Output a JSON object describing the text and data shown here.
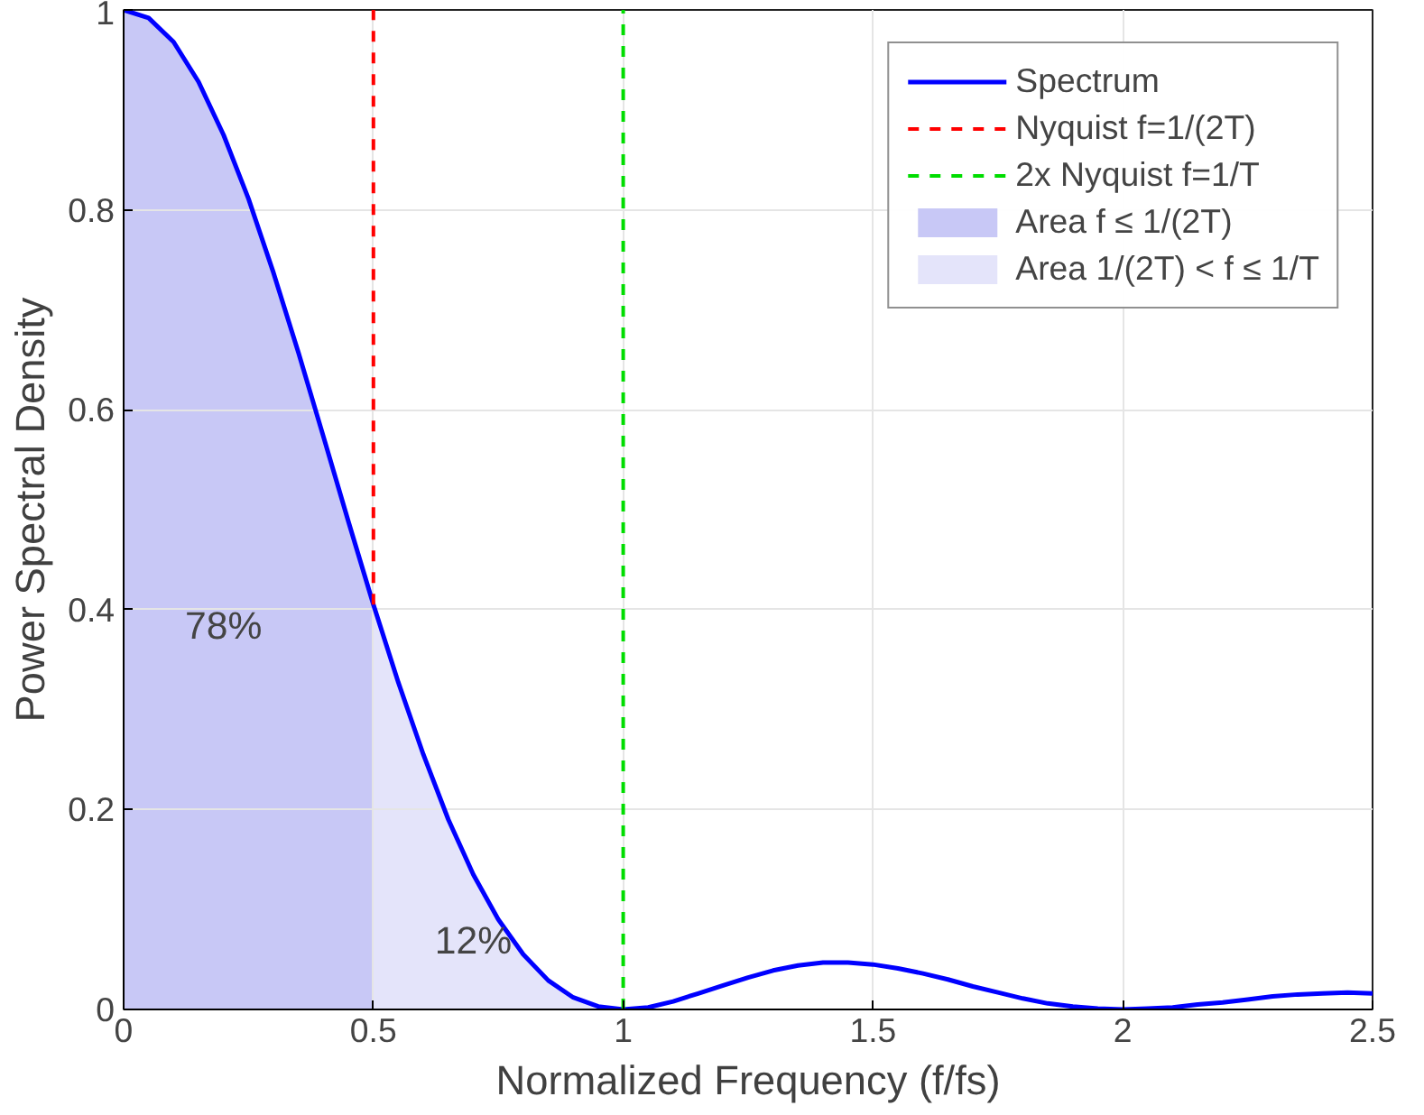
{
  "chart_data": {
    "type": "line",
    "xlabel": "Normalized Frequency (f/fs)",
    "ylabel": "Power Spectral Density",
    "xlim": [
      0,
      2.5
    ],
    "ylim": [
      0,
      1
    ],
    "xticks": [
      0,
      0.5,
      1,
      1.5,
      2,
      2.5
    ],
    "yticks": [
      0,
      0.2,
      0.4,
      0.6,
      0.8,
      1
    ],
    "grid": true,
    "legend": "top right",
    "series": [
      {
        "name": "Spectrum",
        "color": "#0000ff",
        "line_style": "solid",
        "x": [
          0,
          0.05,
          0.1,
          0.15,
          0.2,
          0.25,
          0.3,
          0.35,
          0.4,
          0.45,
          0.5,
          0.55,
          0.6,
          0.65,
          0.7,
          0.75,
          0.8,
          0.85,
          0.9,
          0.95,
          1,
          1.05,
          1.1,
          1.15,
          1.2,
          1.25,
          1.3,
          1.35,
          1.4,
          1.45,
          1.5,
          1.55,
          1.6,
          1.65,
          1.7,
          1.75,
          1.8,
          1.85,
          1.9,
          1.95,
          2,
          2.05,
          2.1,
          2.15,
          2.2,
          2.25,
          2.3,
          2.35,
          2.4,
          2.45,
          2.5
        ],
        "values": [
          1,
          0.992,
          0.968,
          0.928,
          0.875,
          0.811,
          0.737,
          0.657,
          0.573,
          0.488,
          0.405,
          0.327,
          0.255,
          0.19,
          0.135,
          0.09,
          0.055,
          0.029,
          0.012,
          0.003,
          0,
          0.002,
          0.008,
          0.016,
          0.024,
          0.032,
          0.039,
          0.044,
          0.047,
          0.047,
          0.045,
          0.041,
          0.036,
          0.03,
          0.023,
          0.017,
          0.011,
          0.006,
          0.003,
          0.001,
          0,
          0.001,
          0.002,
          0.005,
          0.007,
          0.01,
          0.013,
          0.015,
          0.016,
          0.017,
          0.016
        ]
      },
      {
        "name": "Nyquist f=1/(2T)",
        "color": "#ff0000",
        "line_style": "dashed",
        "x": [
          0.5,
          0.5
        ],
        "values": [
          0.405,
          1
        ]
      },
      {
        "name": "2x Nyquist f=1/T",
        "color": "#00dd00",
        "line_style": "dashed",
        "x": [
          1,
          1
        ],
        "values": [
          0,
          1
        ]
      },
      {
        "name": "Area f ≤ 1/(2T)",
        "color": "#c8c8f6",
        "type": "area",
        "x": [
          0,
          0.05,
          0.1,
          0.15,
          0.2,
          0.25,
          0.3,
          0.35,
          0.4,
          0.45,
          0.5
        ],
        "values": [
          1,
          0.992,
          0.968,
          0.928,
          0.875,
          0.811,
          0.737,
          0.657,
          0.573,
          0.488,
          0.405
        ]
      },
      {
        "name": "Area 1/(2T) < f ≤ 1/T",
        "color": "#e4e4fa",
        "type": "area",
        "x": [
          0.5,
          0.55,
          0.6,
          0.65,
          0.7,
          0.75,
          0.8,
          0.85,
          0.9,
          0.95,
          1
        ],
        "values": [
          0.405,
          0.327,
          0.255,
          0.19,
          0.135,
          0.09,
          0.055,
          0.029,
          0.012,
          0.003,
          0
        ]
      }
    ],
    "annotations": [
      "78%",
      "12%"
    ]
  }
}
